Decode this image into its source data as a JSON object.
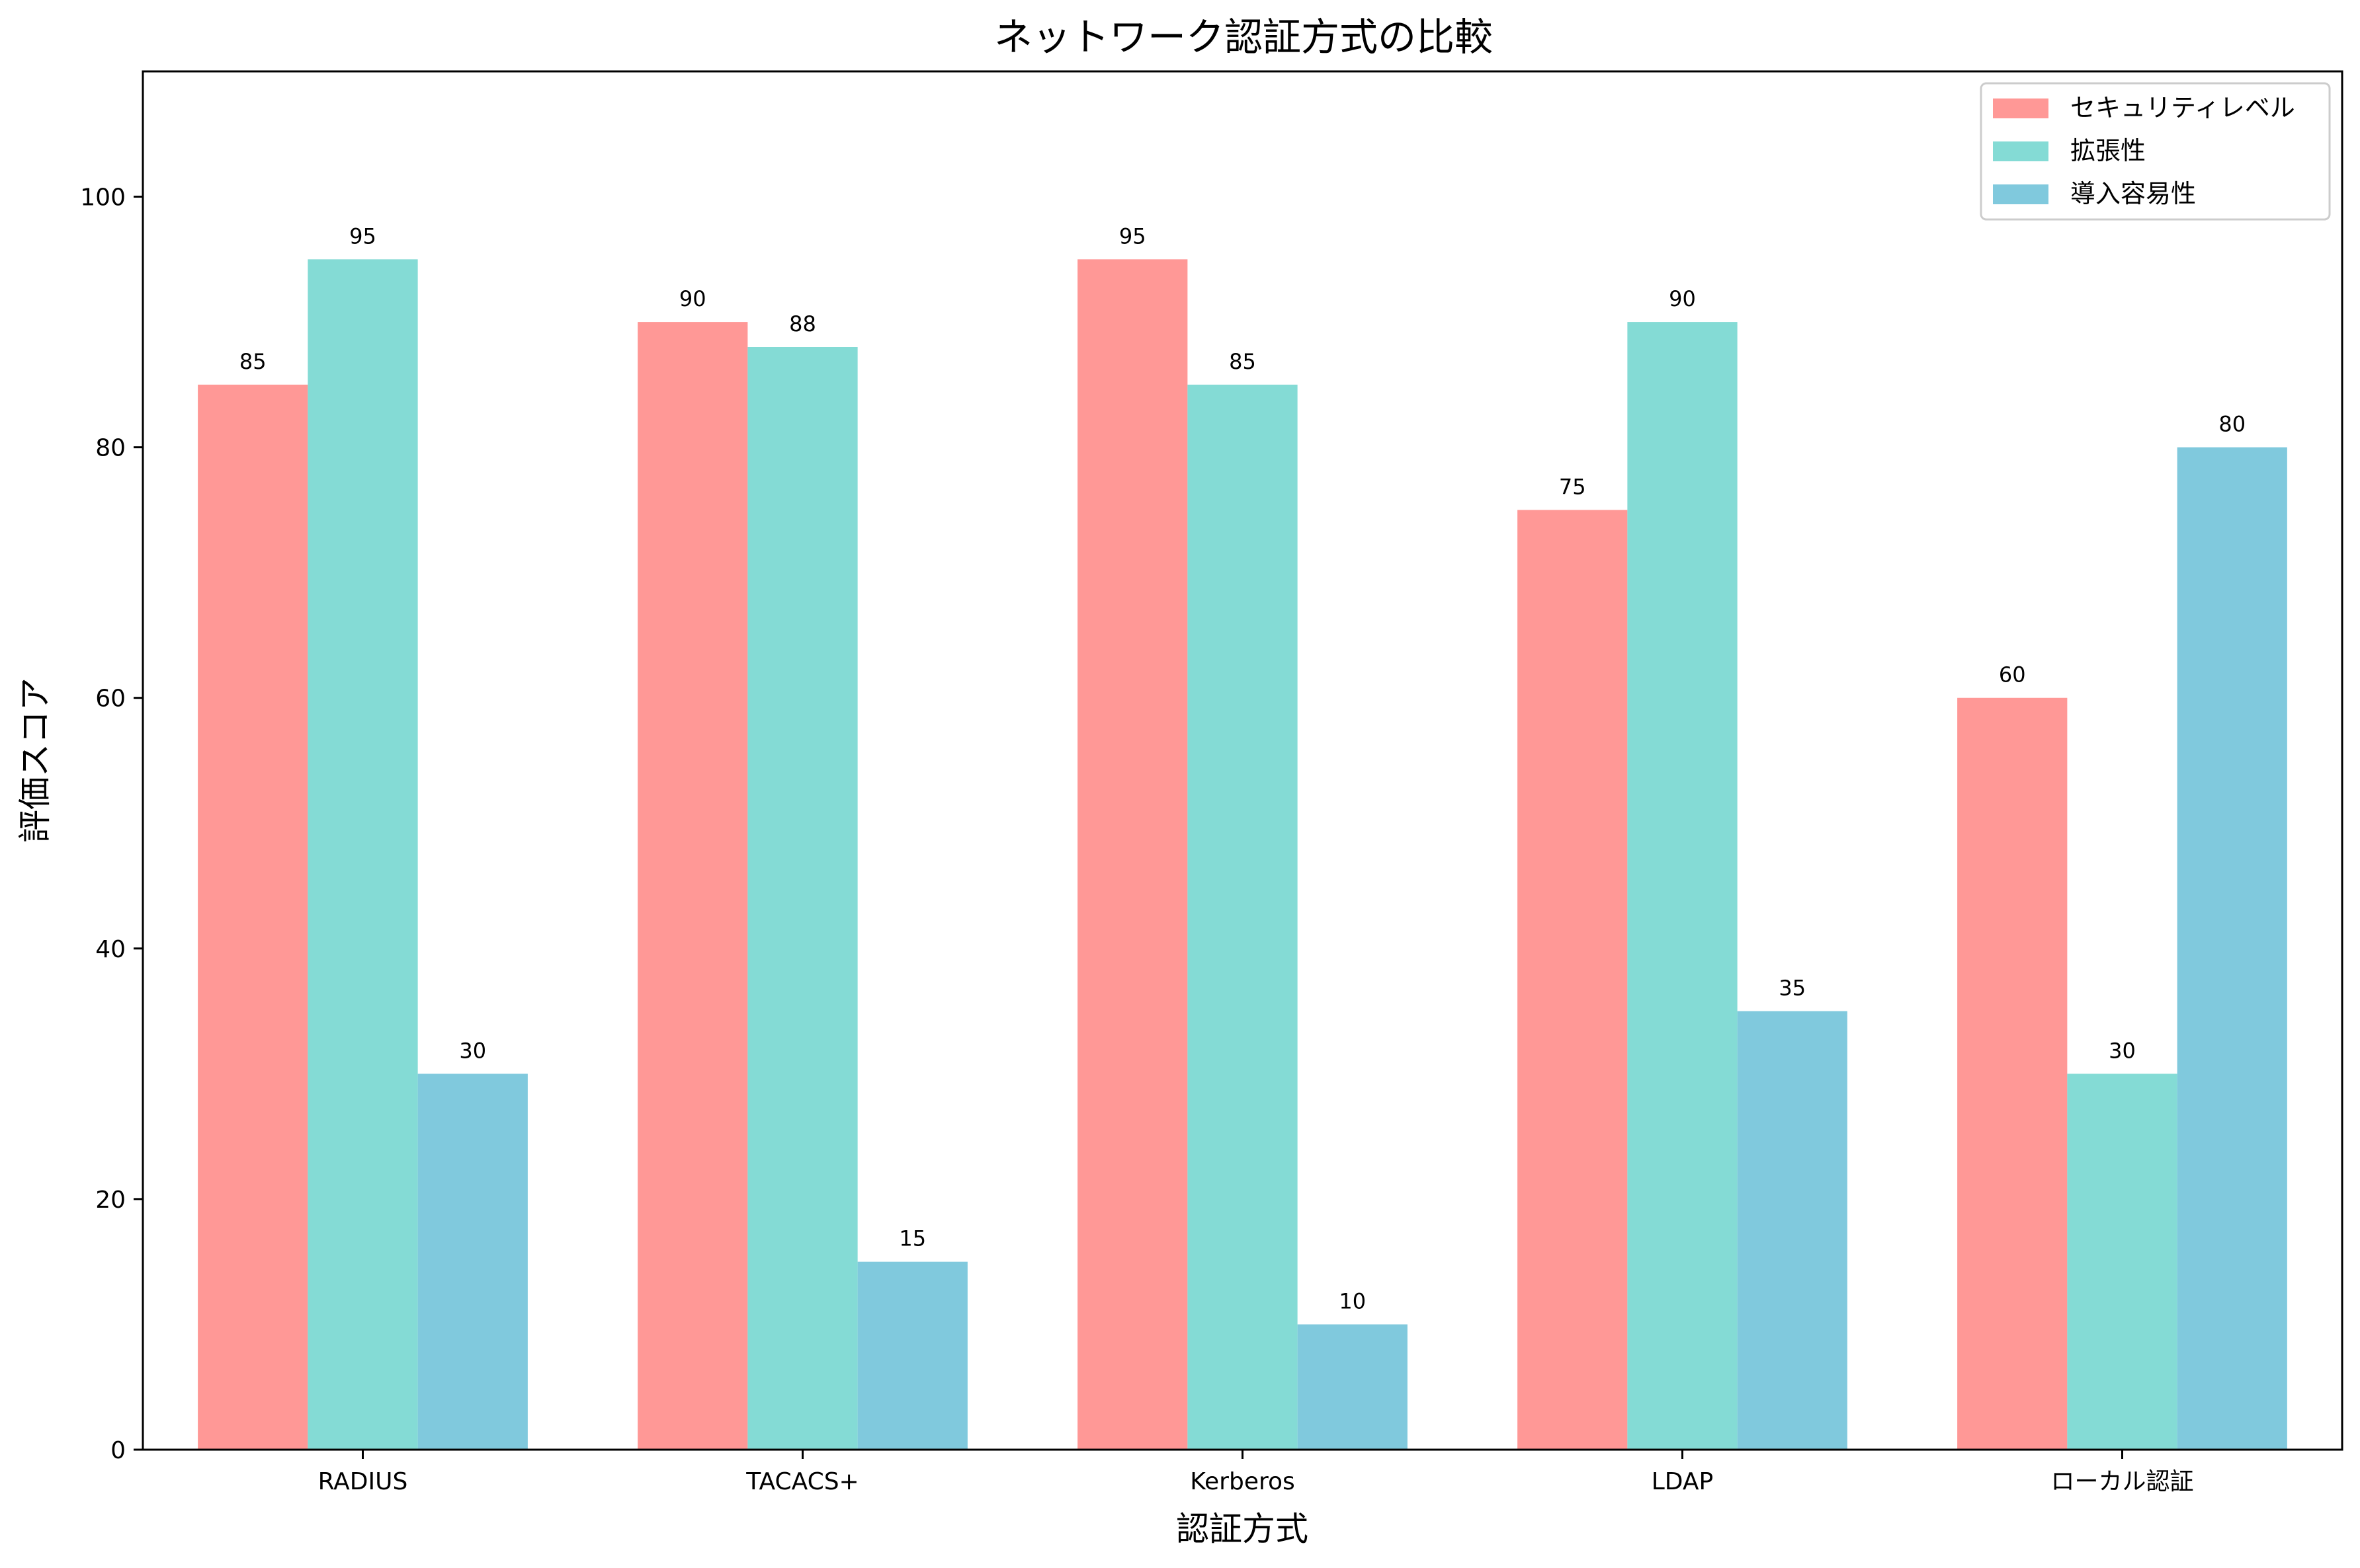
{
  "chart_data": {
    "type": "bar",
    "title": "ネットワーク認証方式の比較",
    "xlabel": "認証方式",
    "ylabel": "評価スコア",
    "ylim": [
      0,
      110
    ],
    "yticks": [
      0,
      20,
      40,
      60,
      80,
      100
    ],
    "grid": false,
    "legend_position": "top-right",
    "categories": [
      "RADIUS",
      "TACACS+",
      "Kerberos",
      "LDAP",
      "ローカル認証"
    ],
    "series": [
      {
        "name": "セキュリティレベル",
        "color": "#FF9896",
        "values": [
          85,
          90,
          95,
          75,
          60
        ]
      },
      {
        "name": "拡張性",
        "color": "#84DBD5",
        "values": [
          95,
          88,
          85,
          90,
          30
        ]
      },
      {
        "name": "導入容易性",
        "color": "#80C9DD",
        "values": [
          30,
          15,
          10,
          35,
          80
        ]
      }
    ]
  }
}
